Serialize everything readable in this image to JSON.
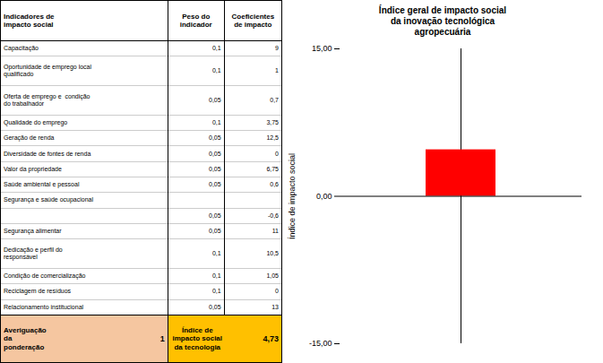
{
  "chart_data": [
    {
      "type": "table",
      "columns": [
        "Indicadores de\nimpacto social",
        "Peso do\nindicador",
        "Coeficientes\nde impacto"
      ],
      "rows": [
        [
          "Capacitação",
          "0,1",
          "9"
        ],
        [
          "Oportunidade de emprego local\nqualificado",
          "0,1",
          "1"
        ],
        [
          "Oferta de emprego e  condição\ndo trabalhador",
          "0,05",
          "0,7"
        ],
        [
          "Qualidade do emprego",
          "0,1",
          "3,75"
        ],
        [
          "Geração de renda",
          "0,05",
          "12,5"
        ],
        [
          "Diversidade de fontes de renda",
          "0,05",
          "0"
        ],
        [
          "Valor da propriedade",
          "0,05",
          "6,75"
        ],
        [
          "Saúde ambiental e pessoal",
          "0,05",
          "0,6"
        ],
        [
          "Segurança e saúde ocupacional",
          null,
          null
        ],
        [
          null,
          "0,05",
          "-0,6"
        ],
        [
          "Segurança alimentar",
          "0,05",
          "11"
        ],
        [
          "Dedicação e perfil do\nresponsável",
          "0,1",
          "10,5"
        ],
        [
          "Condição de comercialização",
          "0,1",
          "1,05"
        ],
        [
          "Reciclagem de resíduos",
          "0,1",
          "0"
        ],
        [
          "Relacionamento institucional",
          "0,05",
          "13"
        ]
      ],
      "footer": [
        {
          "label": "Averiguação\nda\nponderação",
          "value": "1",
          "color": "#F5C6A0"
        },
        {
          "label": "Índice de\nimpacto social\nda tecnologia",
          "value": "4,73",
          "color": "#FFC000"
        }
      ]
    },
    {
      "type": "bar",
      "title": "Índice geral de impacto social\nda inovação tecnológica\nagropecuária",
      "y_label": "Índice de impacto social",
      "categories": [
        null
      ],
      "values": [
        4.73
      ],
      "color": "#FF0000",
      "ylim": [
        -15,
        15
      ],
      "yticks": [
        {
          "value": -15,
          "label": "-15,00"
        },
        {
          "value": 0,
          "label": "0,00"
        },
        {
          "value": 15,
          "label": "15,00"
        }
      ],
      "grid": false,
      "tick_labels": "y"
    }
  ]
}
